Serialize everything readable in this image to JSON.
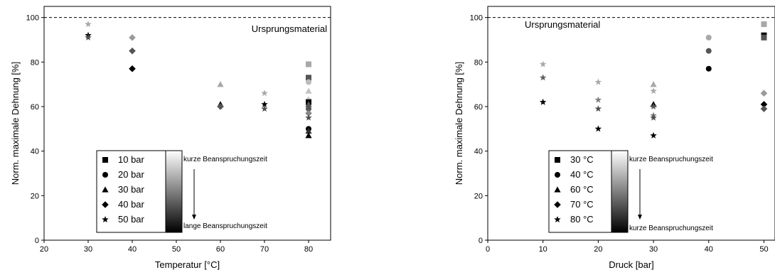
{
  "chart_data": [
    {
      "type": "scatter",
      "xlabel": "Temperatur [°C]",
      "ylabel": "Norm. maximale Dehnung [%]",
      "xlim": [
        20,
        85
      ],
      "ylim": [
        0,
        105
      ],
      "xticks": [
        20,
        30,
        40,
        50,
        60,
        70,
        80
      ],
      "yticks": [
        0,
        20,
        40,
        60,
        80,
        100
      ],
      "reference_line": {
        "y": 100,
        "style": "dashed",
        "label": "Ursprungsmaterial"
      },
      "legend": {
        "position": "bottom-left",
        "entries": [
          {
            "label": "10 bar",
            "marker": "square"
          },
          {
            "label": "20 bar",
            "marker": "circle"
          },
          {
            "label": "30 bar",
            "marker": "triangle"
          },
          {
            "label": "40 bar",
            "marker": "diamond"
          },
          {
            "label": "50 bar",
            "marker": "star"
          }
        ]
      },
      "colorbar": {
        "top_label": "kurze Beanspruchungszeit",
        "bottom_label": "lange Beanspruchungszeit",
        "colors": [
          "#ffffff",
          "#000000"
        ]
      },
      "points": [
        {
          "x": 30,
          "y": 97,
          "marker": "star",
          "color": "#a8a8a8"
        },
        {
          "x": 30,
          "y": 92,
          "marker": "star",
          "color": "#000000"
        },
        {
          "x": 30,
          "y": 91,
          "marker": "star",
          "color": "#505050"
        },
        {
          "x": 40,
          "y": 91,
          "marker": "diamond",
          "color": "#9a9a9a"
        },
        {
          "x": 40,
          "y": 85,
          "marker": "diamond",
          "color": "#555555"
        },
        {
          "x": 40,
          "y": 77,
          "marker": "diamond",
          "color": "#000000"
        },
        {
          "x": 60,
          "y": 70,
          "marker": "triangle",
          "color": "#a8a8a8"
        },
        {
          "x": 60,
          "y": 61,
          "marker": "triangle",
          "color": "#000000"
        },
        {
          "x": 60,
          "y": 60,
          "marker": "diamond",
          "color": "#555555"
        },
        {
          "x": 70,
          "y": 66,
          "marker": "star",
          "color": "#a8a8a8"
        },
        {
          "x": 70,
          "y": 61,
          "marker": "star",
          "color": "#000000"
        },
        {
          "x": 70,
          "y": 59,
          "marker": "star",
          "color": "#505050"
        },
        {
          "x": 80,
          "y": 79,
          "marker": "square",
          "color": "#a8a8a8"
        },
        {
          "x": 80,
          "y": 73,
          "marker": "square",
          "color": "#555555"
        },
        {
          "x": 80,
          "y": 71,
          "marker": "circle",
          "color": "#bcbcbc"
        },
        {
          "x": 80,
          "y": 67,
          "marker": "triangle",
          "color": "#c4c4c4"
        },
        {
          "x": 80,
          "y": 63,
          "marker": "diamond",
          "color": "#cccccc"
        },
        {
          "x": 80,
          "y": 62,
          "marker": "square",
          "color": "#000000"
        },
        {
          "x": 80,
          "y": 61,
          "marker": "triangle",
          "color": "#555555"
        },
        {
          "x": 80,
          "y": 59,
          "marker": "circle",
          "color": "#555555"
        },
        {
          "x": 80,
          "y": 57,
          "marker": "diamond",
          "color": "#888888"
        },
        {
          "x": 80,
          "y": 55,
          "marker": "star",
          "color": "#505050"
        },
        {
          "x": 80,
          "y": 50,
          "marker": "circle",
          "color": "#000000"
        },
        {
          "x": 80,
          "y": 49,
          "marker": "triangle",
          "color": "#303030"
        },
        {
          "x": 80,
          "y": 47,
          "marker": "triangle",
          "color": "#000000"
        }
      ]
    },
    {
      "type": "scatter",
      "xlabel": "Druck [bar]",
      "ylabel": "Norm. maximale Dehnung [%]",
      "xlim": [
        0,
        52
      ],
      "ylim": [
        0,
        105
      ],
      "xticks": [
        0,
        10,
        20,
        30,
        40,
        50
      ],
      "yticks": [
        0,
        20,
        40,
        60,
        80,
        100
      ],
      "reference_line": {
        "y": 100,
        "style": "dashed",
        "label": "Ursprungsmaterial"
      },
      "legend": {
        "position": "bottom-left",
        "entries": [
          {
            "label": "30 °C",
            "marker": "square"
          },
          {
            "label": "40 °C",
            "marker": "circle"
          },
          {
            "label": "60 °C",
            "marker": "triangle"
          },
          {
            "label": "70 °C",
            "marker": "diamond"
          },
          {
            "label": "80 °C",
            "marker": "star"
          }
        ]
      },
      "colorbar": {
        "top_label": "kurze Beanspruchungszeit",
        "bottom_label": "kurze Beanspruchungszeit",
        "colors": [
          "#ffffff",
          "#000000"
        ]
      },
      "points": [
        {
          "x": 10,
          "y": 79,
          "marker": "star",
          "color": "#a8a8a8"
        },
        {
          "x": 10,
          "y": 73,
          "marker": "star",
          "color": "#606060"
        },
        {
          "x": 10,
          "y": 62,
          "marker": "star",
          "color": "#000000"
        },
        {
          "x": 20,
          "y": 71,
          "marker": "star",
          "color": "#a8a8a8"
        },
        {
          "x": 20,
          "y": 63,
          "marker": "star",
          "color": "#808080"
        },
        {
          "x": 20,
          "y": 59,
          "marker": "star",
          "color": "#505050"
        },
        {
          "x": 20,
          "y": 50,
          "marker": "star",
          "color": "#000000"
        },
        {
          "x": 30,
          "y": 70,
          "marker": "triangle",
          "color": "#a8a8a8"
        },
        {
          "x": 30,
          "y": 67,
          "marker": "star",
          "color": "#a8a8a8"
        },
        {
          "x": 30,
          "y": 61,
          "marker": "triangle",
          "color": "#000000"
        },
        {
          "x": 30,
          "y": 60,
          "marker": "star",
          "color": "#555555"
        },
        {
          "x": 30,
          "y": 56,
          "marker": "star",
          "color": "#777777"
        },
        {
          "x": 30,
          "y": 55,
          "marker": "star",
          "color": "#505050"
        },
        {
          "x": 30,
          "y": 47,
          "marker": "star",
          "color": "#000000"
        },
        {
          "x": 40,
          "y": 91,
          "marker": "circle",
          "color": "#a8a8a8"
        },
        {
          "x": 40,
          "y": 85,
          "marker": "circle",
          "color": "#555555"
        },
        {
          "x": 40,
          "y": 77,
          "marker": "circle",
          "color": "#000000"
        },
        {
          "x": 50,
          "y": 97,
          "marker": "square",
          "color": "#a8a8a8"
        },
        {
          "x": 50,
          "y": 92,
          "marker": "square",
          "color": "#000000"
        },
        {
          "x": 50,
          "y": 91,
          "marker": "square",
          "color": "#555555"
        },
        {
          "x": 50,
          "y": 66,
          "marker": "diamond",
          "color": "#9a9a9a"
        },
        {
          "x": 50,
          "y": 61,
          "marker": "diamond",
          "color": "#000000"
        },
        {
          "x": 50,
          "y": 59,
          "marker": "diamond",
          "color": "#555555"
        }
      ]
    }
  ]
}
